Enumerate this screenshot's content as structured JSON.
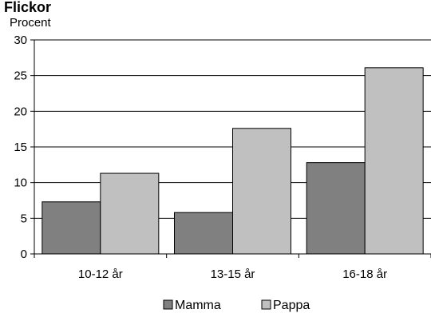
{
  "chart_data": {
    "type": "bar",
    "title": "Flickor",
    "ylabel": "Procent",
    "xlabel": "",
    "categories": [
      "10-12 år",
      "13-15 år",
      "16-18 år"
    ],
    "series": [
      {
        "name": "Mamma",
        "values": [
          7.3,
          5.8,
          12.8
        ]
      },
      {
        "name": "Pappa",
        "values": [
          11.3,
          17.6,
          26.1
        ]
      }
    ],
    "ylim": [
      0,
      30
    ],
    "yticks": [
      0,
      5,
      10,
      15,
      20,
      25,
      30
    ],
    "grid": true,
    "legend": "bottom"
  },
  "colors": {
    "mamma": "#808080",
    "pappa": "#c0c0c0",
    "grid": "#000000"
  }
}
